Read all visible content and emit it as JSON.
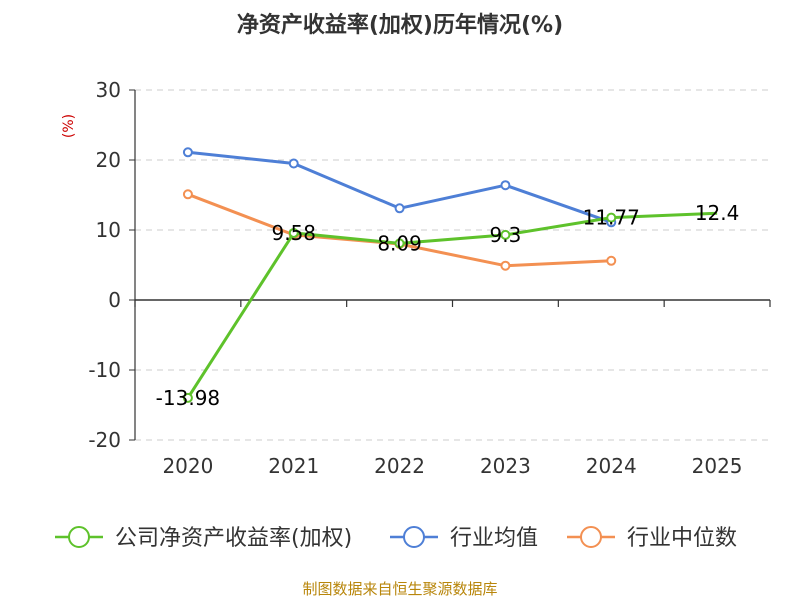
{
  "chart_data": {
    "type": "line",
    "title": "净资产收益率(加权)历年情况(%)",
    "y_unit": "(%)",
    "x": [
      "2020",
      "2021",
      "2022",
      "2023",
      "2024",
      "2025"
    ],
    "ylim": [
      -20,
      30
    ],
    "yticks": [
      30,
      20,
      10,
      0,
      -10,
      -20
    ],
    "grid": true,
    "legend_position": "bottom",
    "series": [
      {
        "name": "公司净资产收益率(加权)",
        "color": "#5ec22b",
        "values": [
          -13.98,
          9.58,
          8.09,
          9.3,
          11.77,
          12.4
        ],
        "labels": [
          "-13.98",
          "9.58",
          "8.09",
          "9.3",
          "11.77",
          "12.4"
        ],
        "show_labels": true,
        "markers": [
          true,
          true,
          true,
          true,
          true,
          false
        ]
      },
      {
        "name": "行业均值",
        "color": "#4e7fd6",
        "values": [
          21.1,
          19.5,
          13.1,
          16.4,
          11.1,
          null
        ],
        "show_labels": false,
        "markers": [
          true,
          true,
          true,
          true,
          true,
          false
        ]
      },
      {
        "name": "行业中位数",
        "color": "#f39052",
        "values": [
          15.1,
          9.3,
          8.0,
          4.9,
          5.6,
          null
        ],
        "show_labels": false,
        "markers": [
          true,
          true,
          true,
          true,
          true,
          false
        ]
      }
    ]
  },
  "source": "制图数据来自恒生聚源数据库"
}
